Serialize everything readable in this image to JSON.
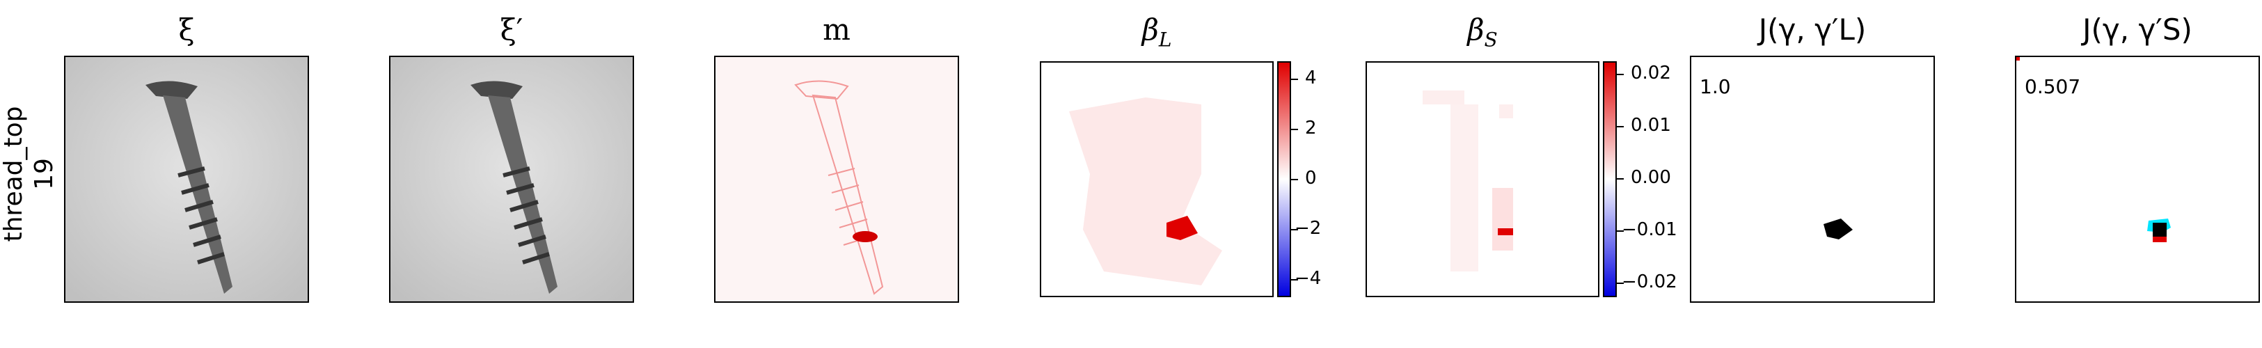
{
  "row_label": {
    "line1": "thread_top",
    "line2": "19"
  },
  "panels": [
    {
      "id": "xi",
      "title": "ξ"
    },
    {
      "id": "xi_prime",
      "title": "ξ′"
    },
    {
      "id": "m",
      "title": "m"
    },
    {
      "id": "beta_L",
      "title_main": "β",
      "title_sub": "L"
    },
    {
      "id": "beta_S",
      "title_main": "β",
      "title_sub": "S"
    },
    {
      "id": "J_L",
      "title": "J(γ, γ′L)",
      "score": "1.0"
    },
    {
      "id": "J_S",
      "title": "J(γ, γ′S)",
      "score": "0.507"
    }
  ],
  "colorbar_L": {
    "ticks": [
      "4",
      "2",
      "0",
      "−2",
      "−4"
    ]
  },
  "colorbar_S": {
    "ticks": [
      "0.02",
      "0.01",
      "0.00",
      "−0.01",
      "−0.02"
    ]
  },
  "colors": {
    "positive": "#e00000",
    "negative": "#0000e0",
    "overlay_cyan": "#00e5ff"
  }
}
